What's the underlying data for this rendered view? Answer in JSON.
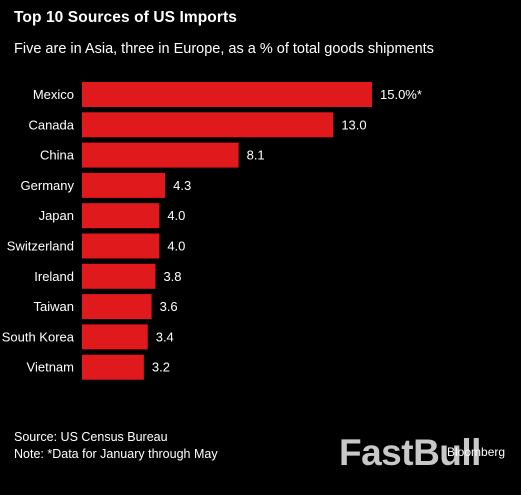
{
  "chart_data": {
    "type": "bar",
    "orientation": "horizontal",
    "title": "Top 10 Sources of US Imports",
    "subtitle": "Five are in Asia, three in Europe, as a % of total goods shipments",
    "categories": [
      "Mexico",
      "Canada",
      "China",
      "Germany",
      "Japan",
      "Switzerland",
      "Ireland",
      "Taiwan",
      "South Korea",
      "Vietnam"
    ],
    "values": [
      15.0,
      13.0,
      8.1,
      4.3,
      4.0,
      4.0,
      3.8,
      3.6,
      3.4,
      3.2
    ],
    "value_labels": [
      "15.0%*",
      "13.0",
      "8.1",
      "4.3",
      "4.0",
      "4.0",
      "3.8",
      "3.6",
      "3.4",
      "3.2"
    ],
    "xlim": [
      0,
      15
    ],
    "grid": false,
    "bar_color": "#e0191c",
    "background": "#000000",
    "text_color": "#ffffff"
  },
  "footer": {
    "source": "Source: US Census Bureau",
    "note": "Note: *Data for January through May"
  },
  "watermark": {
    "text": "FastBull",
    "brand": "Bloomberg"
  }
}
